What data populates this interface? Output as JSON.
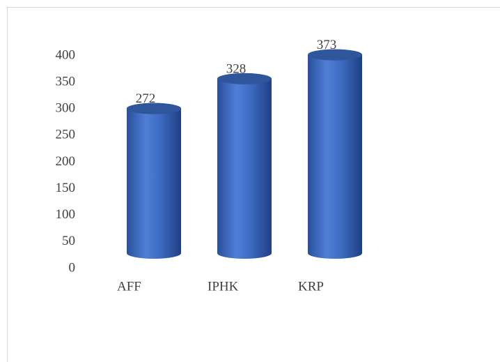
{
  "chart_data": {
    "type": "bar",
    "categories": [
      "AFF",
      "IPHK",
      "KRP"
    ],
    "values": [
      272,
      328,
      373
    ],
    "color": "#4472c4",
    "ylim": [
      0,
      400
    ],
    "yticks": [
      0,
      50,
      100,
      150,
      200,
      250,
      300,
      350,
      400
    ],
    "grid": false
  }
}
